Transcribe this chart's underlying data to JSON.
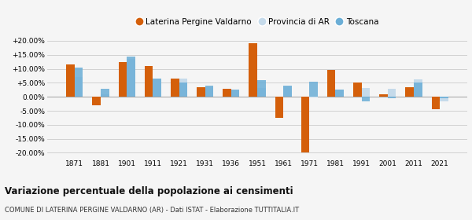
{
  "years": [
    1871,
    1881,
    1901,
    1911,
    1921,
    1931,
    1936,
    1951,
    1961,
    1971,
    1981,
    1991,
    2001,
    2011,
    2021
  ],
  "laterina": [
    11.5,
    -3.0,
    12.5,
    11.0,
    6.5,
    3.5,
    2.8,
    19.0,
    -7.5,
    -20.0,
    9.5,
    5.0,
    1.0,
    3.5,
    -4.5
  ],
  "provincia": [
    7.0,
    1.0,
    13.5,
    6.5,
    6.5,
    3.5,
    2.2,
    3.2,
    3.8,
    -0.3,
    2.5,
    3.2,
    2.8,
    6.2,
    -1.5
  ],
  "toscana": [
    10.5,
    3.0,
    14.5,
    6.5,
    5.2,
    4.0,
    2.5,
    6.0,
    4.0,
    5.5,
    2.5,
    -1.5,
    -0.5,
    5.0,
    -0.5
  ],
  "color_laterina": "#d45f0a",
  "color_provincia": "#c5daea",
  "color_toscana": "#6baed6",
  "title": "Variazione percentuale della popolazione ai censimenti",
  "subtitle": "COMUNE DI LATERINA PERGINE VALDARNO (AR) - Dati ISTAT - Elaborazione TUTTITALIA.IT",
  "ylim": [
    -22,
    22
  ],
  "background_color": "#f5f5f5",
  "grid_color": "#cccccc"
}
